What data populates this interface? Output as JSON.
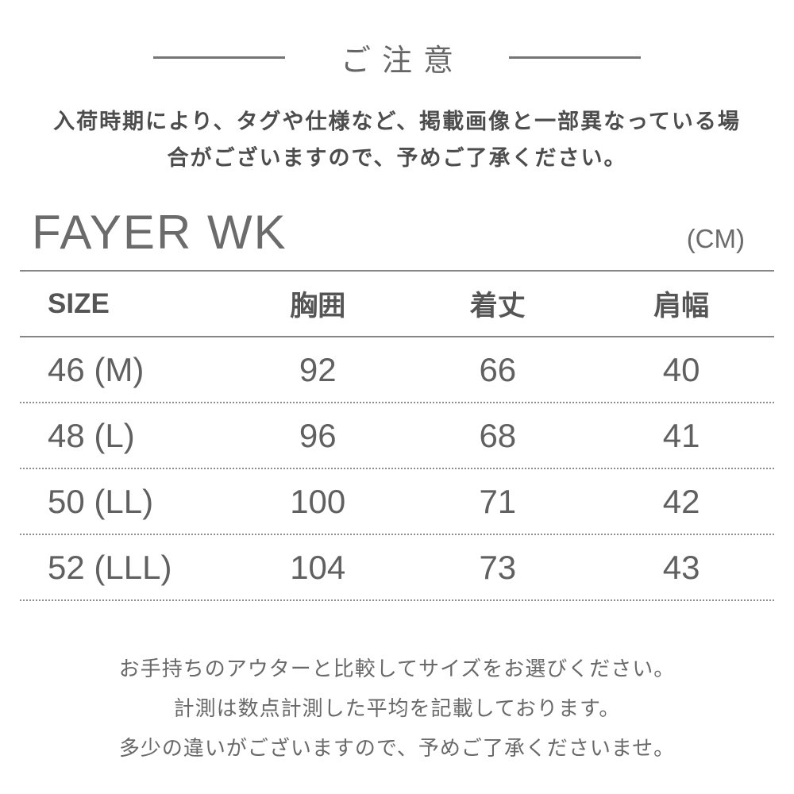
{
  "notice": {
    "title": "ご注意",
    "paragraph_lines": [
      "入荷時期により、タグや仕様など、掲載画像と一部異なっている場",
      "合がございますので、予めご了承ください。"
    ]
  },
  "size_chart": {
    "product_name": "FAYER WK",
    "unit_label": "(CM)",
    "columns": [
      "SIZE",
      "胸囲",
      "着丈",
      "肩幅"
    ],
    "rows": [
      [
        "46 (M)",
        "92",
        "66",
        "40"
      ],
      [
        "48 (L)",
        "96",
        "68",
        "41"
      ],
      [
        "50 (LL)",
        "100",
        "71",
        "42"
      ],
      [
        "52 (LLL)",
        "104",
        "73",
        "43"
      ]
    ]
  },
  "footer_notes": [
    "お手持ちのアウターと比較してサイズをお選びください。",
    "計測は数点計測した平均を記載しております。",
    "多少の違いがございますので、予めご了承くださいませ。"
  ],
  "colors": {
    "text_gray": "#5f5f5f",
    "line_gray": "#868686"
  }
}
